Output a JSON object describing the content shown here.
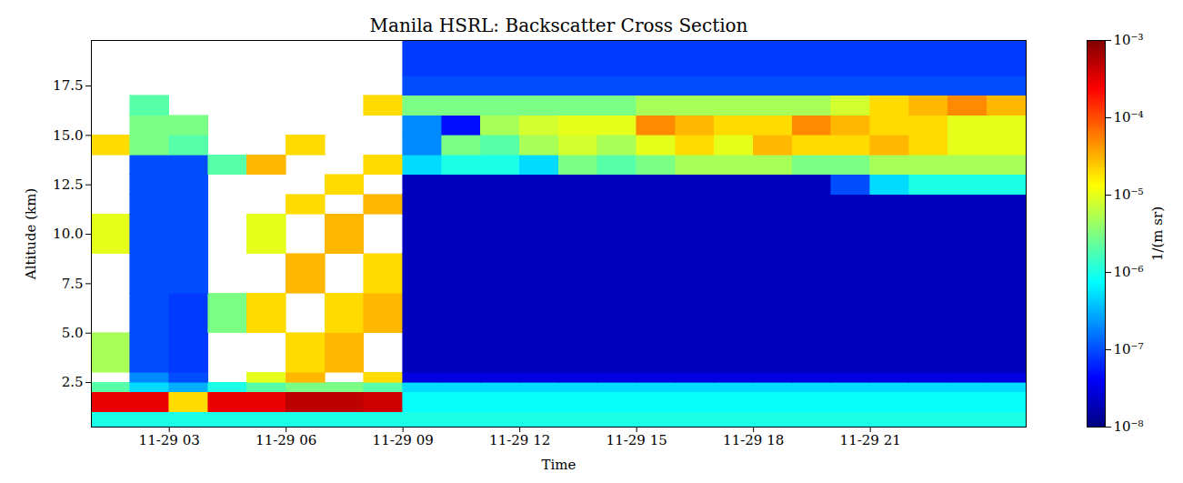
{
  "chart_data": {
    "type": "heatmap",
    "title": "Manila HSRL: Backscatter Cross Section",
    "x_label": "Time",
    "y_label": "Altitude (km)",
    "xlim": [
      1,
      25
    ],
    "ylim": [
      0.25,
      19.8
    ],
    "xticks": [
      {
        "value": 3,
        "label": "11-29 03"
      },
      {
        "value": 6,
        "label": "11-29 06"
      },
      {
        "value": 9,
        "label": "11-29 09"
      },
      {
        "value": 12,
        "label": "11-29 12"
      },
      {
        "value": 15,
        "label": "11-29 15"
      },
      {
        "value": 18,
        "label": "11-29 18"
      },
      {
        "value": 21,
        "label": "11-29 21"
      }
    ],
    "yticks": [
      2.5,
      {
        "value": 5,
        "label": "5.0"
      },
      7.5,
      {
        "value": 10,
        "label": "10.0"
      },
      12.5,
      {
        "value": 15,
        "label": "15.0"
      },
      17.5
    ],
    "color": "jet",
    "x_bins": [
      1,
      2,
      3,
      4,
      5,
      6,
      7,
      8,
      9,
      10,
      11,
      12,
      13,
      14,
      15,
      16,
      17,
      18,
      19,
      20,
      21,
      22,
      23,
      24,
      25
    ],
    "y_bins": [
      0.25,
      1,
      2,
      2.5,
      3,
      5,
      7,
      9,
      11,
      12,
      13,
      14,
      15,
      16,
      17,
      18,
      19.8
    ],
    "values": [
      [
        1e-06,
        1e-06,
        1e-06,
        1e-06,
        1e-06,
        1e-06,
        1e-06,
        1e-06,
        1e-06,
        1e-06,
        1e-06,
        1e-06,
        1e-06,
        1e-06,
        1e-06,
        1e-06,
        1e-06,
        1e-06,
        1e-06,
        1e-06,
        1e-06,
        1e-06,
        1e-06,
        1e-06
      ],
      [
        0.0003,
        0.0003,
        2e-05,
        0.0003,
        0.0003,
        0.0005,
        0.0005,
        0.0004,
        8e-07,
        8e-07,
        8e-07,
        8e-07,
        8e-07,
        8e-07,
        8e-07,
        8e-07,
        8e-07,
        8e-07,
        8e-07,
        8e-07,
        8e-07,
        8e-07,
        8e-07,
        8e-07
      ],
      [
        2e-06,
        5e-07,
        3e-07,
        1e-06,
        2e-06,
        3e-06,
        3e-06,
        2e-06,
        5e-07,
        5e-07,
        5e-07,
        5e-07,
        5e-07,
        5e-07,
        5e-07,
        5e-07,
        5e-07,
        5e-07,
        5e-07,
        5e-07,
        5e-07,
        5e-07,
        5e-07,
        5e-07
      ],
      [
        null,
        2e-07,
        1e-07,
        null,
        1e-05,
        3e-05,
        null,
        2e-05,
        3e-08,
        3e-08,
        3e-08,
        3e-08,
        3e-08,
        3e-08,
        3e-08,
        3e-08,
        3e-08,
        3e-08,
        3e-08,
        3e-08,
        3e-08,
        3e-08,
        3e-08,
        3e-08
      ],
      [
        5e-06,
        1e-07,
        8e-08,
        null,
        null,
        2e-05,
        3e-05,
        null,
        2e-08,
        2e-08,
        2e-08,
        2e-08,
        2e-08,
        2e-08,
        2e-08,
        2e-08,
        2e-08,
        2e-08,
        2e-08,
        2e-08,
        2e-08,
        2e-08,
        2e-08,
        2e-08
      ],
      [
        null,
        1e-07,
        8e-08,
        3e-06,
        2e-05,
        null,
        2e-05,
        3e-05,
        2e-08,
        2e-08,
        2e-08,
        2e-08,
        2e-08,
        2e-08,
        2e-08,
        2e-08,
        2e-08,
        2e-08,
        2e-08,
        2e-08,
        2e-08,
        2e-08,
        2e-08,
        2e-08
      ],
      [
        null,
        1e-07,
        1e-07,
        null,
        null,
        3e-05,
        null,
        2e-05,
        2e-08,
        2e-08,
        2e-08,
        2e-08,
        2e-08,
        2e-08,
        2e-08,
        2e-08,
        2e-08,
        2e-08,
        2e-08,
        2e-08,
        2e-08,
        2e-08,
        2e-08,
        2e-08
      ],
      [
        1e-05,
        1e-07,
        1e-07,
        null,
        1e-05,
        null,
        3e-05,
        null,
        2e-08,
        2e-08,
        2e-08,
        2e-08,
        2e-08,
        2e-08,
        2e-08,
        2e-08,
        2e-08,
        2e-08,
        2e-08,
        2e-08,
        2e-08,
        2e-08,
        2e-08,
        2e-08
      ],
      [
        null,
        1e-07,
        1e-07,
        null,
        null,
        2e-05,
        null,
        3e-05,
        2e-08,
        2e-08,
        2e-08,
        2e-08,
        2e-08,
        2e-08,
        2e-08,
        2e-08,
        2e-08,
        2e-08,
        2e-08,
        2e-08,
        2e-08,
        2e-08,
        2e-08,
        2e-08
      ],
      [
        null,
        1e-07,
        1e-07,
        null,
        null,
        null,
        2e-05,
        null,
        2e-08,
        2e-08,
        2e-08,
        2e-08,
        2e-08,
        2e-08,
        2e-08,
        2e-08,
        2e-08,
        2e-08,
        2e-08,
        1e-07,
        5e-07,
        1e-06,
        1e-06,
        1e-06
      ],
      [
        null,
        1e-07,
        1e-07,
        2e-06,
        3e-05,
        null,
        null,
        2e-05,
        5e-07,
        1e-06,
        1e-06,
        5e-07,
        3e-06,
        2e-06,
        3e-06,
        5e-06,
        5e-06,
        5e-06,
        3e-06,
        3e-06,
        5e-06,
        5e-06,
        5e-06,
        5e-06
      ],
      [
        2e-05,
        3e-06,
        2e-06,
        null,
        null,
        2e-05,
        null,
        null,
        2e-07,
        3e-06,
        2e-06,
        5e-06,
        8e-06,
        5e-06,
        1e-05,
        2e-05,
        1e-05,
        3e-05,
        2e-05,
        2e-05,
        3e-05,
        2e-05,
        1e-05,
        1e-05
      ],
      [
        null,
        3e-06,
        3e-06,
        null,
        null,
        null,
        null,
        null,
        2e-07,
        5e-08,
        5e-06,
        8e-06,
        1e-05,
        1e-05,
        5e-05,
        3e-05,
        2e-05,
        2e-05,
        5e-05,
        3e-05,
        2e-05,
        2e-05,
        1e-05,
        1e-05
      ],
      [
        null,
        2e-06,
        null,
        null,
        null,
        null,
        null,
        2e-05,
        3e-06,
        3e-06,
        3e-06,
        3e-06,
        3e-06,
        3e-06,
        5e-06,
        5e-06,
        5e-06,
        5e-06,
        5e-06,
        8e-06,
        2e-05,
        3e-05,
        5e-05,
        3e-05
      ],
      [
        null,
        null,
        null,
        null,
        null,
        null,
        null,
        null,
        1e-07,
        1e-07,
        1e-07,
        1e-07,
        1e-07,
        1e-07,
        1e-07,
        1e-07,
        1e-07,
        1e-07,
        1e-07,
        1e-07,
        1e-07,
        1e-07,
        1e-07,
        1e-07
      ],
      [
        null,
        null,
        null,
        null,
        null,
        null,
        null,
        null,
        8e-08,
        8e-08,
        8e-08,
        8e-08,
        8e-08,
        8e-08,
        8e-08,
        8e-08,
        8e-08,
        8e-08,
        8e-08,
        8e-08,
        8e-08,
        8e-08,
        8e-08,
        8e-08
      ]
    ],
    "colorbar": {
      "label": "1/(m sr)",
      "log": true,
      "lim": [
        1e-08,
        0.001
      ],
      "ticks": [
        {
          "value": 0.001,
          "label": "10⁻³"
        },
        {
          "value": 0.0001,
          "label": "10⁻⁴"
        },
        {
          "value": 1e-05,
          "label": "10⁻⁵"
        },
        {
          "value": 1e-06,
          "label": "10⁻⁶"
        },
        {
          "value": 1e-07,
          "label": "10⁻⁷"
        },
        {
          "value": 1e-08,
          "label": "10⁻⁸"
        }
      ]
    }
  }
}
